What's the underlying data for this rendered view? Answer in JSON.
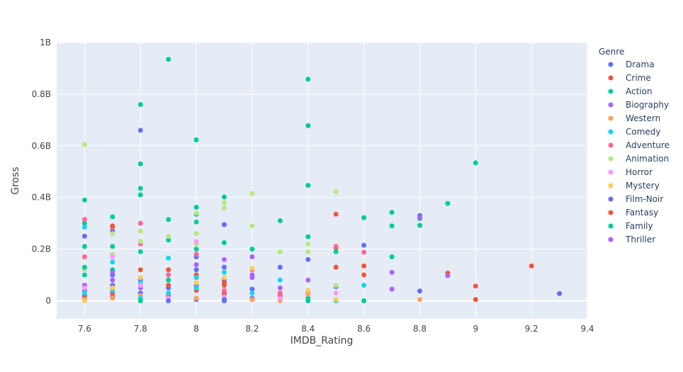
{
  "chart_data": {
    "type": "scatter",
    "xlabel": "IMDB_Rating",
    "ylabel": "Gross",
    "xlim": [
      7.5,
      9.4
    ],
    "ylim": [
      -70000000,
      1000000000
    ],
    "x_ticks": [
      7.6,
      7.8,
      8,
      8.2,
      8.4,
      8.6,
      8.8,
      9,
      9.2,
      9.4
    ],
    "x_tick_labels": [
      "7.6",
      "7.8",
      "8",
      "8.2",
      "8.4",
      "8.6",
      "8.8",
      "9",
      "9.2",
      "9.4"
    ],
    "y_ticks": [
      0,
      200000000,
      400000000,
      600000000,
      800000000,
      1000000000
    ],
    "y_tick_labels": [
      "0",
      "0.2B",
      "0.4B",
      "0.6B",
      "0.8B",
      "1B"
    ],
    "grid": true,
    "legend_title": "Genre",
    "legend_position": "right",
    "series": [
      {
        "name": "Drama",
        "color": "#636efa",
        "points": [
          [
            7.6,
            20000000
          ],
          [
            7.6,
            40000000
          ],
          [
            7.6,
            250000000
          ],
          [
            7.7,
            15000000
          ],
          [
            7.7,
            60000000
          ],
          [
            7.7,
            100000000
          ],
          [
            7.7,
            270000000
          ],
          [
            7.8,
            660000000
          ],
          [
            7.8,
            30000000
          ],
          [
            7.8,
            80000000
          ],
          [
            7.9,
            10000000
          ],
          [
            7.9,
            50000000
          ],
          [
            8,
            5000000
          ],
          [
            8,
            60000000
          ],
          [
            8,
            120000000
          ],
          [
            8,
            170000000
          ],
          [
            8.1,
            0
          ],
          [
            8.1,
            20000000
          ],
          [
            8.1,
            80000000
          ],
          [
            8.1,
            130000000
          ],
          [
            8.1,
            295000000
          ],
          [
            8.2,
            10000000
          ],
          [
            8.2,
            45000000
          ],
          [
            8.3,
            20000000
          ],
          [
            8.3,
            130000000
          ],
          [
            8.4,
            30000000
          ],
          [
            8.4,
            160000000
          ],
          [
            8.5,
            55000000
          ],
          [
            8.6,
            215000000
          ],
          [
            8.8,
            38000000
          ],
          [
            8.8,
            330000000
          ],
          [
            9.3,
            28000000
          ]
        ]
      },
      {
        "name": "Crime",
        "color": "#EF553B",
        "points": [
          [
            7.6,
            10000000
          ],
          [
            7.7,
            30000000
          ],
          [
            7.8,
            120000000
          ],
          [
            7.9,
            20000000
          ],
          [
            7.9,
            60000000
          ],
          [
            7.9,
            120000000
          ],
          [
            8,
            40000000
          ],
          [
            8,
            100000000
          ],
          [
            8.1,
            30000000
          ],
          [
            8.1,
            70000000
          ],
          [
            8.2,
            5000000
          ],
          [
            8.3,
            15000000
          ],
          [
            8.5,
            130000000
          ],
          [
            8.5,
            335000000
          ],
          [
            8.5,
            205000000
          ],
          [
            8.6,
            100000000
          ],
          [
            8.6,
            135000000
          ],
          [
            8.9,
            107000000
          ],
          [
            9,
            57000000
          ],
          [
            9,
            5000000
          ],
          [
            9.2,
            135000000
          ]
        ]
      },
      {
        "name": "Action",
        "color": "#00cc96",
        "points": [
          [
            7.6,
            100000000
          ],
          [
            7.6,
            210000000
          ],
          [
            7.6,
            300000000
          ],
          [
            7.6,
            390000000
          ],
          [
            7.7,
            120000000
          ],
          [
            7.7,
            210000000
          ],
          [
            7.7,
            325000000
          ],
          [
            7.8,
            190000000
          ],
          [
            7.8,
            410000000
          ],
          [
            7.8,
            435000000
          ],
          [
            7.8,
            530000000
          ],
          [
            7.8,
            760000000
          ],
          [
            7.9,
            80000000
          ],
          [
            7.9,
            235000000
          ],
          [
            7.9,
            315000000
          ],
          [
            7.9,
            935000000
          ],
          [
            8,
            200000000
          ],
          [
            8,
            305000000
          ],
          [
            8,
            335000000
          ],
          [
            8,
            362000000
          ],
          [
            8,
            623000000
          ],
          [
            8.1,
            225000000
          ],
          [
            8.1,
            402000000
          ],
          [
            8.2,
            200000000
          ],
          [
            8.3,
            310000000
          ],
          [
            8.4,
            10000000
          ],
          [
            8.4,
            248000000
          ],
          [
            8.4,
            447000000
          ],
          [
            8.4,
            678000000
          ],
          [
            8.4,
            858000000
          ],
          [
            8.5,
            190000000
          ],
          [
            8.6,
            0
          ],
          [
            8.6,
            322000000
          ],
          [
            8.7,
            170000000
          ],
          [
            8.7,
            290000000
          ],
          [
            8.7,
            342000000
          ],
          [
            8.8,
            292000000
          ],
          [
            8.8,
            318000000
          ],
          [
            8.9,
            377000000
          ],
          [
            9,
            534000000
          ]
        ]
      },
      {
        "name": "Biography",
        "color": "#ab63fa",
        "points": [
          [
            7.6,
            60000000
          ],
          [
            7.7,
            80000000
          ],
          [
            7.8,
            50000000
          ],
          [
            8,
            140000000
          ],
          [
            8.1,
            160000000
          ],
          [
            8.2,
            90000000
          ],
          [
            8.2,
            170000000
          ],
          [
            8.3,
            50000000
          ],
          [
            8.4,
            80000000
          ],
          [
            8.7,
            110000000
          ],
          [
            8.7,
            45000000
          ],
          [
            8.8,
            322000000
          ],
          [
            8.9,
            97000000
          ]
        ]
      },
      {
        "name": "Western",
        "color": "#FFA15A",
        "points": [
          [
            7.6,
            5000000
          ],
          [
            7.7,
            10000000
          ],
          [
            7.8,
            20000000
          ],
          [
            8,
            10000000
          ],
          [
            8.2,
            5000000
          ],
          [
            8.3,
            0
          ],
          [
            8.4,
            25000000
          ],
          [
            8.8,
            5000000
          ]
        ]
      },
      {
        "name": "Comedy",
        "color": "#19d3f3",
        "points": [
          [
            7.6,
            30000000
          ],
          [
            7.6,
            285000000
          ],
          [
            7.7,
            40000000
          ],
          [
            7.7,
            150000000
          ],
          [
            7.8,
            10000000
          ],
          [
            7.8,
            70000000
          ],
          [
            7.9,
            165000000
          ],
          [
            7.9,
            30000000
          ],
          [
            8,
            50000000
          ],
          [
            8,
            90000000
          ],
          [
            8.1,
            110000000
          ],
          [
            8.2,
            30000000
          ],
          [
            8.3,
            80000000
          ],
          [
            8.5,
            0
          ],
          [
            8.6,
            60000000
          ]
        ]
      },
      {
        "name": "Adventure",
        "color": "#FF6692",
        "points": [
          [
            7.6,
            170000000
          ],
          [
            7.6,
            315000000
          ],
          [
            7.7,
            285000000
          ],
          [
            7.8,
            220000000
          ],
          [
            7.8,
            300000000
          ],
          [
            7.9,
            100000000
          ],
          [
            8,
            180000000
          ],
          [
            8.1,
            40000000
          ],
          [
            8.2,
            120000000
          ],
          [
            8.3,
            30000000
          ],
          [
            8.5,
            210000000
          ],
          [
            8.6,
            188000000
          ]
        ]
      },
      {
        "name": "Animation",
        "color": "#B6E880",
        "points": [
          [
            7.6,
            120000000
          ],
          [
            7.6,
            605000000
          ],
          [
            7.7,
            180000000
          ],
          [
            7.7,
            260000000
          ],
          [
            7.8,
            270000000
          ],
          [
            7.8,
            230000000
          ],
          [
            7.9,
            250000000
          ],
          [
            8,
            220000000
          ],
          [
            8,
            260000000
          ],
          [
            8,
            340000000
          ],
          [
            8.1,
            360000000
          ],
          [
            8.1,
            380000000
          ],
          [
            8.2,
            290000000
          ],
          [
            8.2,
            415000000
          ],
          [
            8.3,
            190000000
          ],
          [
            8.4,
            190000000
          ],
          [
            8.4,
            220000000
          ],
          [
            8.5,
            422000000
          ],
          [
            8.5,
            60000000
          ]
        ]
      },
      {
        "name": "Horror",
        "color": "#FF97FF",
        "points": [
          [
            7.6,
            50000000
          ],
          [
            7.7,
            170000000
          ],
          [
            7.8,
            60000000
          ],
          [
            7.9,
            10000000
          ],
          [
            8,
            230000000
          ],
          [
            8.1,
            15000000
          ],
          [
            8.3,
            10000000
          ],
          [
            8.5,
            30000000
          ]
        ]
      },
      {
        "name": "Mystery",
        "color": "#FECB52",
        "points": [
          [
            7.6,
            0
          ],
          [
            7.7,
            50000000
          ],
          [
            7.8,
            90000000
          ],
          [
            7.9,
            0
          ],
          [
            8,
            70000000
          ],
          [
            8.1,
            90000000
          ],
          [
            8.2,
            125000000
          ],
          [
            8.4,
            40000000
          ],
          [
            8.5,
            5000000
          ]
        ]
      },
      {
        "name": "Film-Noir",
        "color": "#636efa",
        "points": [
          [
            7.9,
            0
          ],
          [
            8.1,
            5000000
          ]
        ]
      },
      {
        "name": "Fantasy",
        "color": "#EF553B",
        "points": [
          [
            7.7,
            290000000
          ],
          [
            8.1,
            60000000
          ]
        ]
      },
      {
        "name": "Family",
        "color": "#00cc96",
        "points": [
          [
            7.6,
            130000000
          ],
          [
            7.8,
            0
          ],
          [
            8.4,
            0
          ]
        ]
      },
      {
        "name": "Thriller",
        "color": "#ab63fa",
        "points": [
          [
            7.7,
            110000000
          ],
          [
            8.2,
            100000000
          ]
        ]
      }
    ]
  }
}
